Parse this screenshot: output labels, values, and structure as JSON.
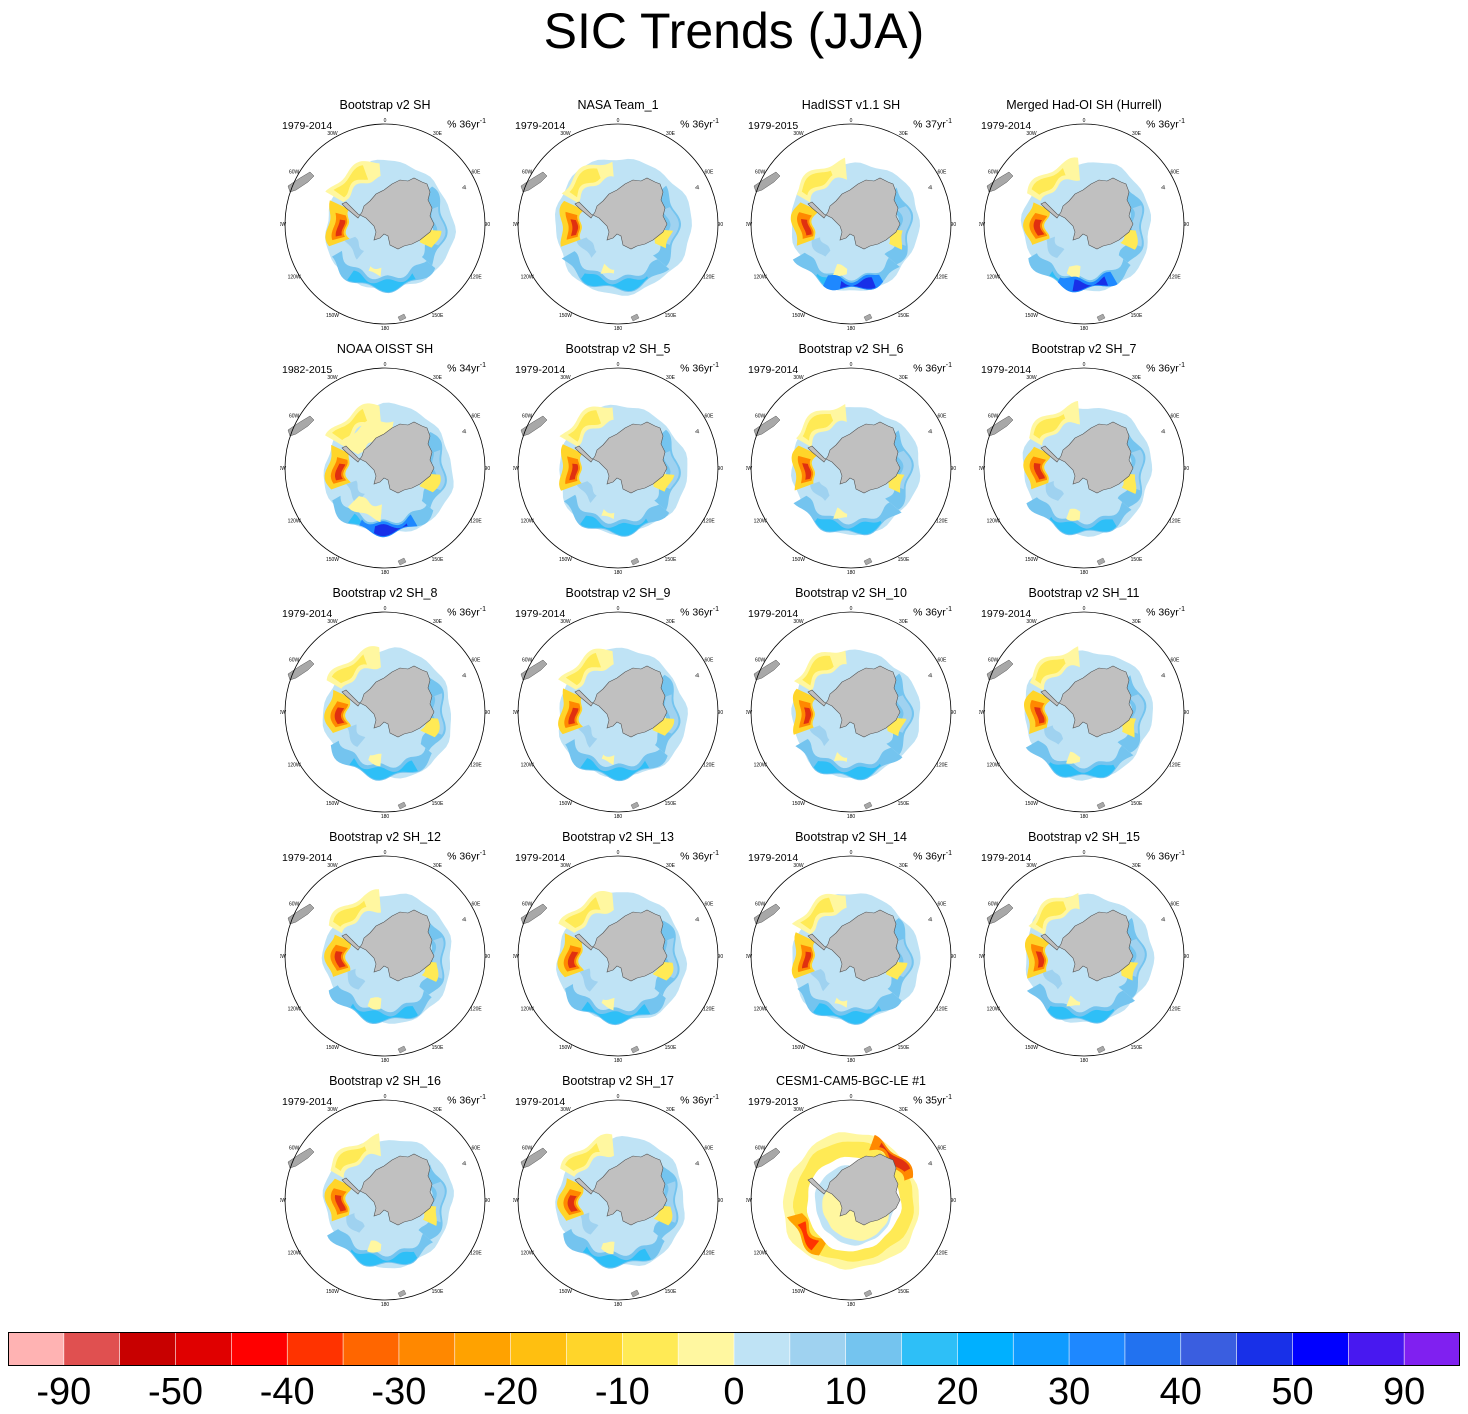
{
  "title": "SIC Trends (JJA)",
  "chart_data": {
    "type": "heatmap",
    "projection": "south polar stereographic",
    "title": "SIC Trends (JJA)",
    "longitude_labels": [
      "0",
      "30E",
      "60E",
      "90E",
      "120E",
      "150E",
      "180",
      "150W",
      "120W",
      "90W",
      "60W",
      "30W"
    ],
    "panels": [
      {
        "title": "Bootstrap v2 SH",
        "period": "1979-2014",
        "rate_prefix": "% 36yr",
        "rate_sup": "-1",
        "style": "obs"
      },
      {
        "title": "NASA Team_1",
        "period": "1979-2014",
        "rate_prefix": "% 36yr",
        "rate_sup": "-1",
        "style": "nasa"
      },
      {
        "title": "HadISST v1.1 SH",
        "period": "1979-2015",
        "rate_prefix": "% 37yr",
        "rate_sup": "-1",
        "style": "had"
      },
      {
        "title": "Merged Had-OI SH (Hurrell)",
        "period": "1979-2014",
        "rate_prefix": "% 36yr",
        "rate_sup": "-1",
        "style": "had"
      },
      {
        "title": "NOAA OISST SH",
        "period": "1982-2015",
        "rate_prefix": "% 34yr",
        "rate_sup": "-1",
        "style": "oisst"
      },
      {
        "title": "Bootstrap v2 SH_5",
        "period": "1979-2014",
        "rate_prefix": "% 36yr",
        "rate_sup": "-1",
        "style": "obs"
      },
      {
        "title": "Bootstrap v2 SH_6",
        "period": "1979-2014",
        "rate_prefix": "% 36yr",
        "rate_sup": "-1",
        "style": "obs"
      },
      {
        "title": "Bootstrap v2 SH_7",
        "period": "1979-2014",
        "rate_prefix": "% 36yr",
        "rate_sup": "-1",
        "style": "obs"
      },
      {
        "title": "Bootstrap v2 SH_8",
        "period": "1979-2014",
        "rate_prefix": "% 36yr",
        "rate_sup": "-1",
        "style": "obs"
      },
      {
        "title": "Bootstrap v2 SH_9",
        "period": "1979-2014",
        "rate_prefix": "% 36yr",
        "rate_sup": "-1",
        "style": "obs"
      },
      {
        "title": "Bootstrap v2 SH_10",
        "period": "1979-2014",
        "rate_prefix": "% 36yr",
        "rate_sup": "-1",
        "style": "obs"
      },
      {
        "title": "Bootstrap v2 SH_11",
        "period": "1979-2014",
        "rate_prefix": "% 36yr",
        "rate_sup": "-1",
        "style": "obs"
      },
      {
        "title": "Bootstrap v2 SH_12",
        "period": "1979-2014",
        "rate_prefix": "% 36yr",
        "rate_sup": "-1",
        "style": "obs"
      },
      {
        "title": "Bootstrap v2 SH_13",
        "period": "1979-2014",
        "rate_prefix": "% 36yr",
        "rate_sup": "-1",
        "style": "obs"
      },
      {
        "title": "Bootstrap v2 SH_14",
        "period": "1979-2014",
        "rate_prefix": "% 36yr",
        "rate_sup": "-1",
        "style": "obs"
      },
      {
        "title": "Bootstrap v2 SH_15",
        "period": "1979-2014",
        "rate_prefix": "% 36yr",
        "rate_sup": "-1",
        "style": "obs"
      },
      {
        "title": "Bootstrap v2 SH_16",
        "period": "1979-2014",
        "rate_prefix": "% 36yr",
        "rate_sup": "-1",
        "style": "obs"
      },
      {
        "title": "Bootstrap v2 SH_17",
        "period": "1979-2014",
        "rate_prefix": "% 36yr",
        "rate_sup": "-1",
        "style": "obs"
      },
      {
        "title": "CESM1-CAM5-BGC-LE #1",
        "period": "1979-2013",
        "rate_prefix": "% 35yr",
        "rate_sup": "-1",
        "style": "model"
      }
    ],
    "colorbar": {
      "colors": [
        "#ffb3b3",
        "#e05050",
        "#c80000",
        "#e00000",
        "#ff0000",
        "#ff3300",
        "#ff6600",
        "#ff8800",
        "#ffa200",
        "#ffbf10",
        "#ffd52a",
        "#ffea55",
        "#fff7a0",
        "#bfe3f5",
        "#9fd2f0",
        "#74c4ef",
        "#2ebff7",
        "#00b0ff",
        "#0f9bff",
        "#1e88ff",
        "#2272f0",
        "#3a5ee0",
        "#1830e8",
        "#0000ff",
        "#4818f0",
        "#8020f0"
      ],
      "tick_labels": [
        "-90",
        "-50",
        "-40",
        "-30",
        "-20",
        "-10",
        "0",
        "10",
        "20",
        "30",
        "40",
        "50",
        "90"
      ],
      "tick_boundaries": [
        1,
        3,
        5,
        7,
        9,
        11,
        13,
        15,
        17,
        19,
        21,
        23,
        25
      ]
    }
  }
}
